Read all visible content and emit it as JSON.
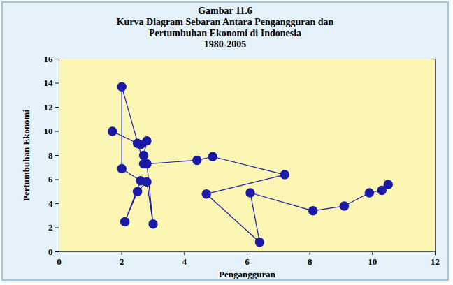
{
  "chart_data": {
    "type": "scatter",
    "title": "Gambar 11.6",
    "subtitle": [
      "Kurva Diagram Sebaran Antara Pengangguran dan",
      "Pertumbuhan Ekonomi di Indonesia",
      "1980-2005"
    ],
    "x_label": "Pengangguran",
    "y_label": "Pertumbuhan Ekonomi",
    "series": [
      {
        "color": "#1a1aa6",
        "marker": "circle",
        "line_style": "solid",
        "x": [
          1.7,
          2.5,
          2.6,
          2.8,
          2.7,
          2.7,
          2.0,
          2.0,
          2.6,
          2.1,
          2.5,
          2.8,
          3.0,
          2.8,
          4.4,
          4.9,
          7.2,
          4.7,
          6.4,
          6.1,
          8.1,
          9.1,
          9.9,
          10.3,
          10.5
        ],
        "values": [
          10.0,
          9.0,
          8.9,
          9.2,
          8.0,
          7.3,
          13.7,
          6.9,
          5.9,
          2.5,
          5.0,
          5.8,
          2.3,
          7.3,
          7.6,
          7.9,
          6.4,
          4.8,
          0.8,
          4.9,
          3.4,
          3.8,
          4.9,
          5.1,
          5.6
        ]
      }
    ],
    "xlim": [
      0,
      12
    ],
    "xticks": [
      0,
      2,
      4,
      6,
      8,
      10,
      12
    ],
    "ylim": [
      0,
      16
    ],
    "yticks": [
      0,
      2,
      4,
      6,
      8,
      10,
      12,
      14,
      16
    ],
    "grid": false
  }
}
